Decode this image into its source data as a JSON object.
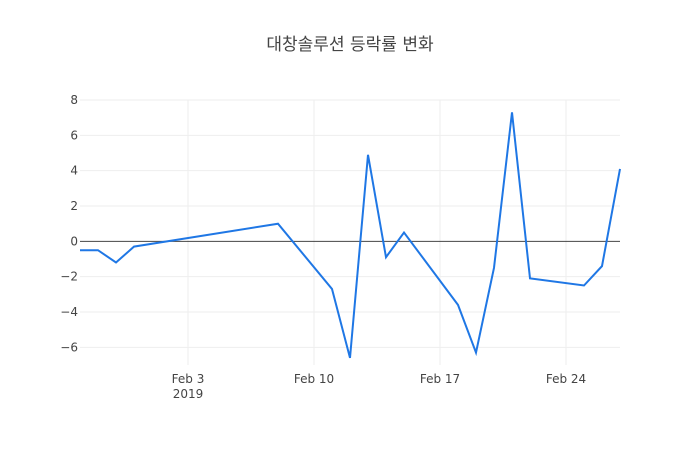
{
  "chart_data": {
    "type": "line",
    "title": "대창솔루션 등락률 변화",
    "xlabel": "",
    "ylabel": "",
    "x": [
      "2019-01-28",
      "2019-01-29",
      "2019-01-30",
      "2019-01-31",
      "2019-02-08",
      "2019-02-11",
      "2019-02-12",
      "2019-02-13",
      "2019-02-14",
      "2019-02-15",
      "2019-02-18",
      "2019-02-19",
      "2019-02-20",
      "2019-02-21",
      "2019-02-22",
      "2019-02-25",
      "2019-02-26",
      "2019-02-27"
    ],
    "series": [
      {
        "values": [
          -0.5,
          -0.5,
          -1.2,
          -0.3,
          1.0,
          -2.7,
          -6.6,
          4.9,
          -0.9,
          0.5,
          -3.6,
          -6.3,
          -1.5,
          7.3,
          -2.1,
          -2.5,
          -1.4,
          4.1
        ],
        "color": "#1f77b4"
      }
    ],
    "xlim": [
      "2019-01-28",
      "2019-02-27"
    ],
    "ylim": [
      -7,
      8
    ],
    "yticks": [
      -6,
      -4,
      -2,
      0,
      2,
      4,
      6,
      8
    ],
    "yticklabels": [
      "−6",
      "−4",
      "−2",
      "0",
      "2",
      "4",
      "6",
      "8"
    ],
    "xticks": [
      "2019-02-03",
      "2019-02-10",
      "2019-02-17",
      "2019-02-24"
    ],
    "xticklabels": [
      "Feb 3",
      "Feb 10",
      "Feb 17",
      "Feb 24"
    ],
    "xtick_year": "2019",
    "grid": true,
    "legend": "none",
    "line_color": "#1f77e5",
    "zero_line_color": "#444444",
    "grid_color": "#eeeeee",
    "tick_text_color": "#444444",
    "title_color": "#444444"
  }
}
